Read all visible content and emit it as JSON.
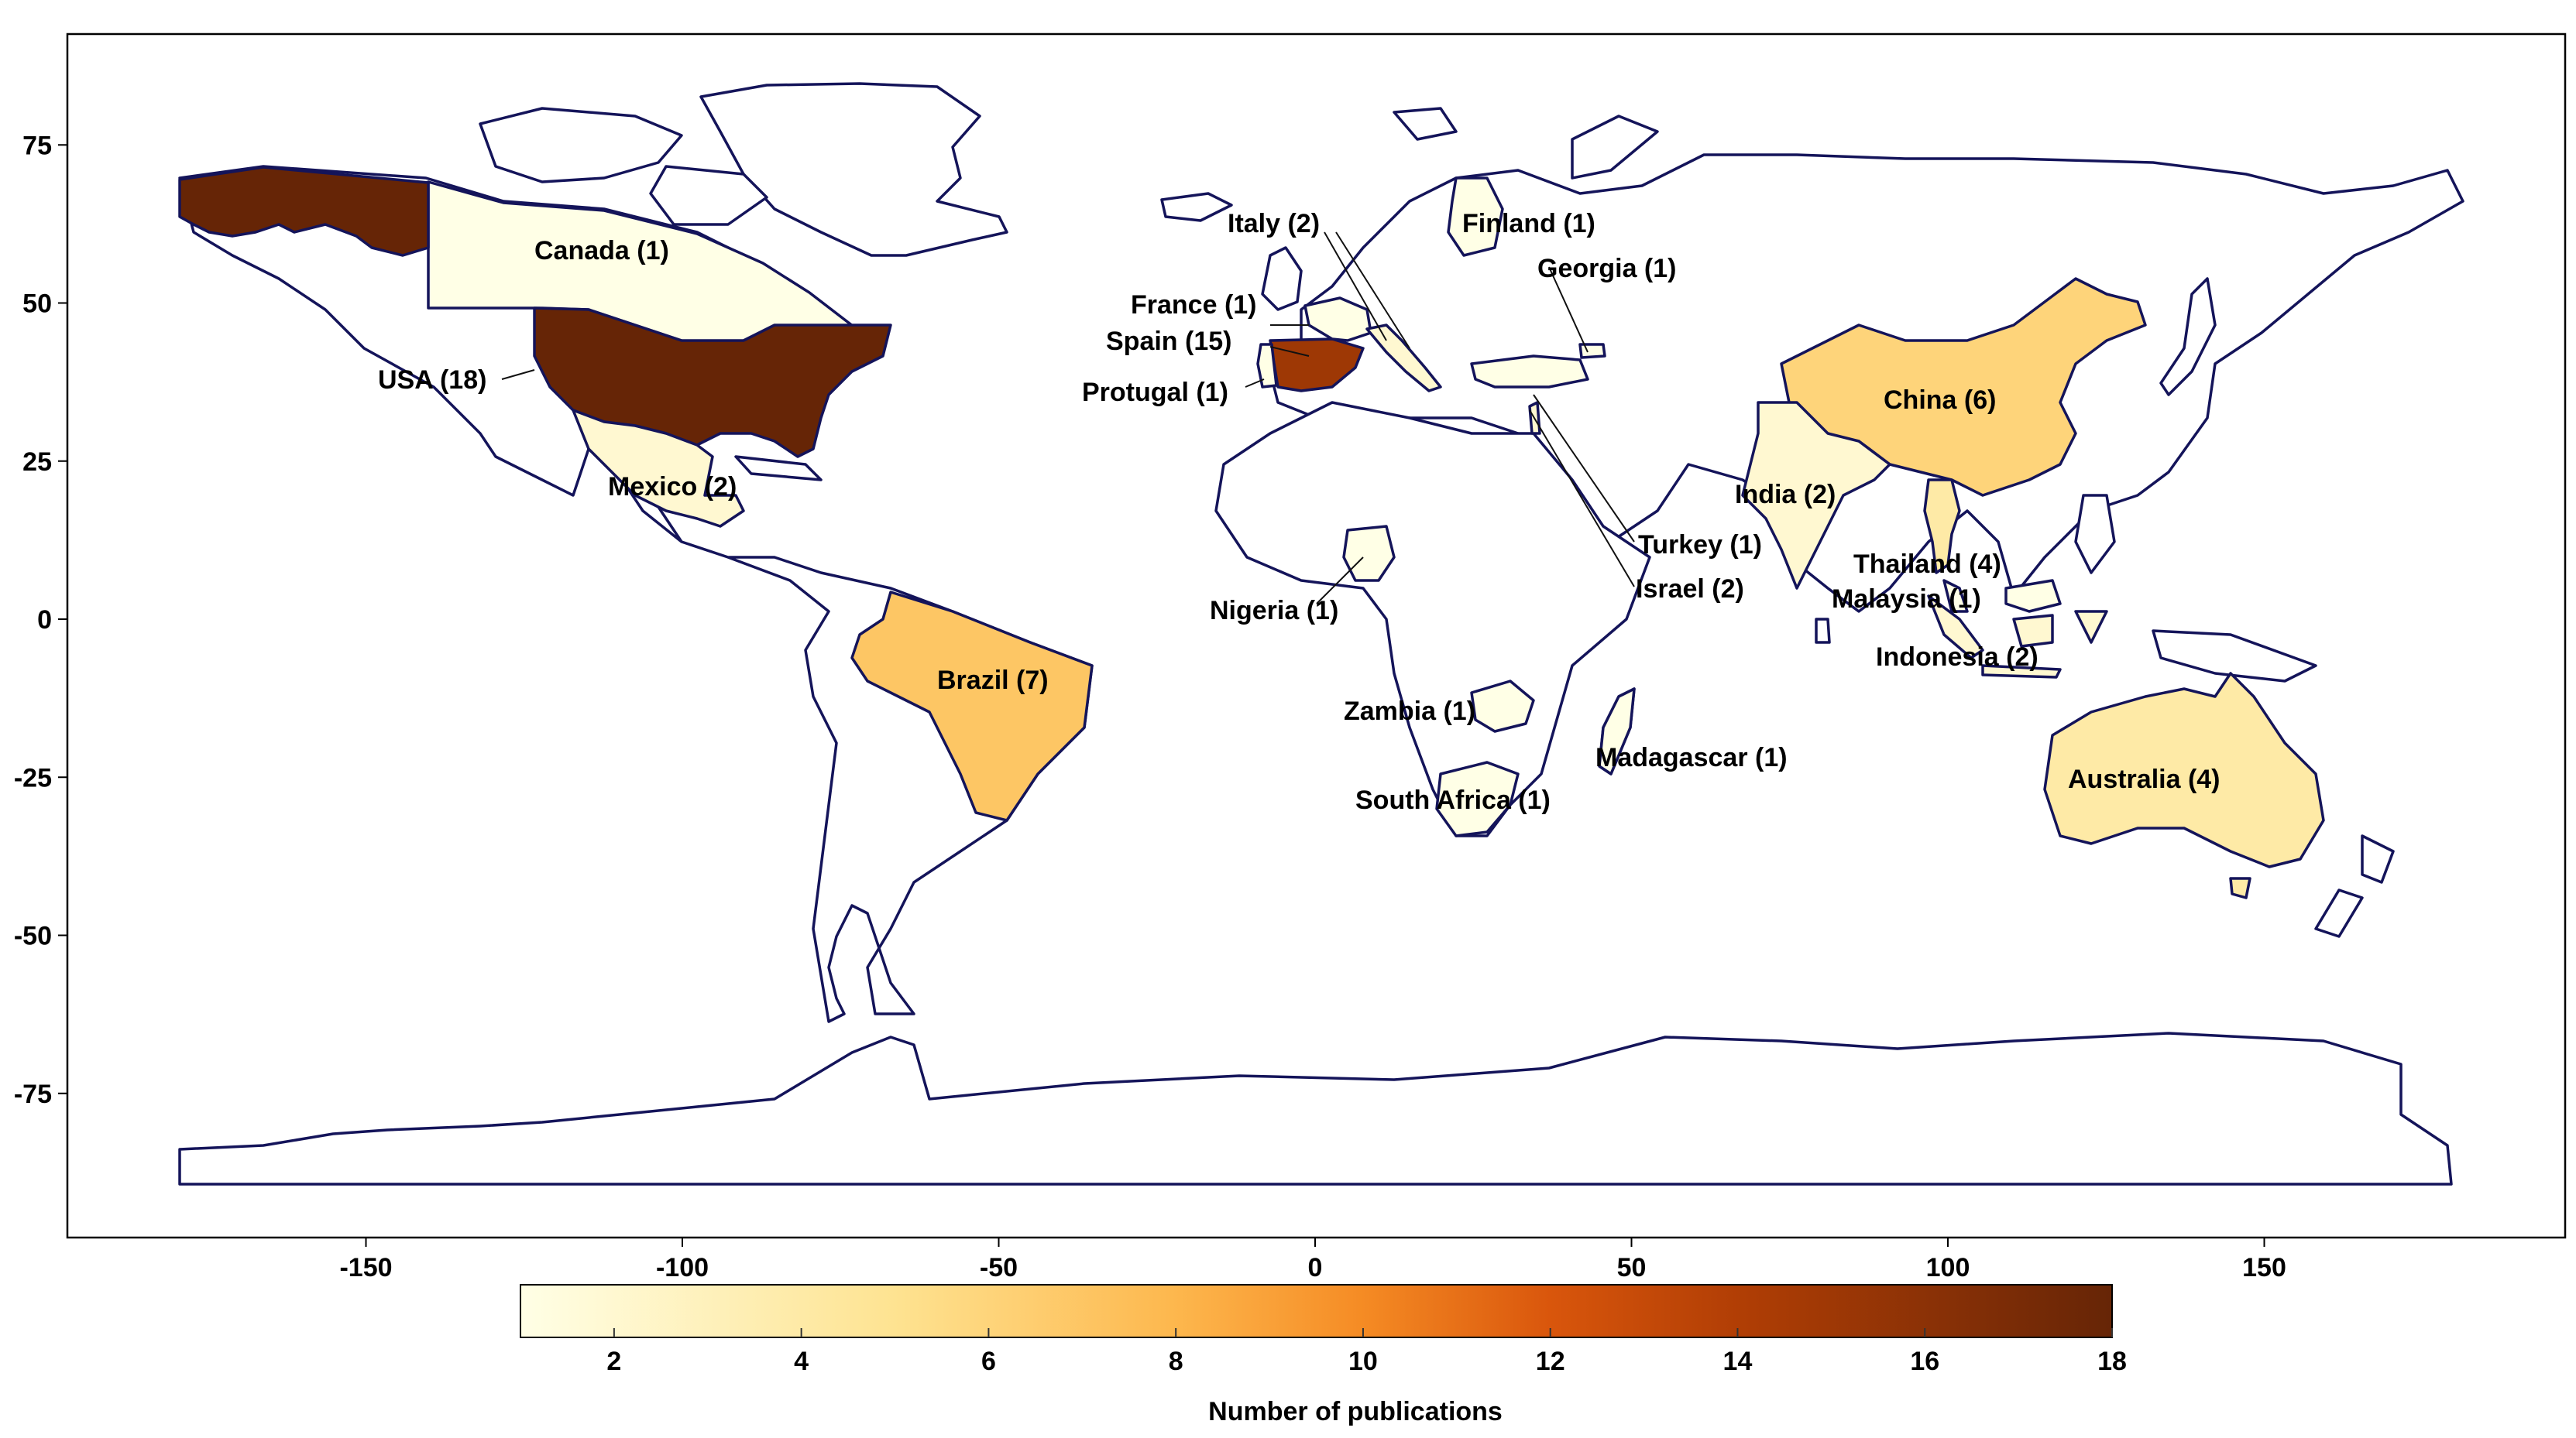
{
  "map": {
    "colorbar": {
      "title": "Number of publications",
      "min": 1,
      "max": 18,
      "ticks": [
        "2",
        "4",
        "6",
        "8",
        "10",
        "12",
        "14",
        "16",
        "18"
      ],
      "tick_values": [
        2,
        4,
        6,
        8,
        10,
        12,
        14,
        16,
        18
      ],
      "stops": [
        {
          "value": 1,
          "color": "#ffffe6"
        },
        {
          "value": 5,
          "color": "#fee391"
        },
        {
          "value": 8,
          "color": "#fdb74d"
        },
        {
          "value": 10,
          "color": "#f58b24"
        },
        {
          "value": 12,
          "color": "#d9560c"
        },
        {
          "value": 14,
          "color": "#b13e05"
        },
        {
          "value": 18,
          "color": "#662506"
        }
      ]
    },
    "x_axis": {
      "ticks": [
        "-150",
        "-100",
        "-50",
        "0",
        "50",
        "100",
        "150"
      ],
      "values": [
        -150,
        -100,
        -50,
        0,
        50,
        100,
        150
      ]
    },
    "y_axis": {
      "ticks": [
        "75",
        "50",
        "25",
        "0",
        "-25",
        "-50",
        "-75"
      ],
      "values": [
        75,
        50,
        25,
        0,
        -25,
        -50,
        -75
      ]
    },
    "outline_color": "#14145a",
    "countries": [
      {
        "id": "usa",
        "label": "USA (18)",
        "count": 18
      },
      {
        "id": "spain",
        "label": "Spain (15)",
        "count": 15
      },
      {
        "id": "brazil",
        "label": "Brazil (7)",
        "count": 7
      },
      {
        "id": "china",
        "label": "China (6)",
        "count": 6
      },
      {
        "id": "australia",
        "label": "Australia (4)",
        "count": 4
      },
      {
        "id": "thailand",
        "label": "Thailand (4)",
        "count": 4
      },
      {
        "id": "mexico",
        "label": "Mexico (2)",
        "count": 2
      },
      {
        "id": "italy",
        "label": "Italy (2)",
        "count": 2
      },
      {
        "id": "india",
        "label": "India (2)",
        "count": 2
      },
      {
        "id": "israel",
        "label": "Israel (2)",
        "count": 2
      },
      {
        "id": "indonesia",
        "label": "Indonesia (2)",
        "count": 2
      },
      {
        "id": "canada",
        "label": "Canada (1)",
        "count": 1
      },
      {
        "id": "finland",
        "label": "Finland (1)",
        "count": 1
      },
      {
        "id": "georgia",
        "label": "Georgia (1)",
        "count": 1
      },
      {
        "id": "france",
        "label": "France (1)",
        "count": 1
      },
      {
        "id": "portugal",
        "label": "Protugal (1)",
        "count": 1
      },
      {
        "id": "turkey",
        "label": "Turkey (1)",
        "count": 1
      },
      {
        "id": "malaysia",
        "label": "Malaysia (1)",
        "count": 1
      },
      {
        "id": "nigeria",
        "label": "Nigeria (1)",
        "count": 1
      },
      {
        "id": "zambia",
        "label": "Zambia (1)",
        "count": 1
      },
      {
        "id": "madagascar",
        "label": "Madagascar (1)",
        "count": 1
      },
      {
        "id": "south_africa",
        "label": "South Africa (1)",
        "count": 1
      }
    ]
  }
}
